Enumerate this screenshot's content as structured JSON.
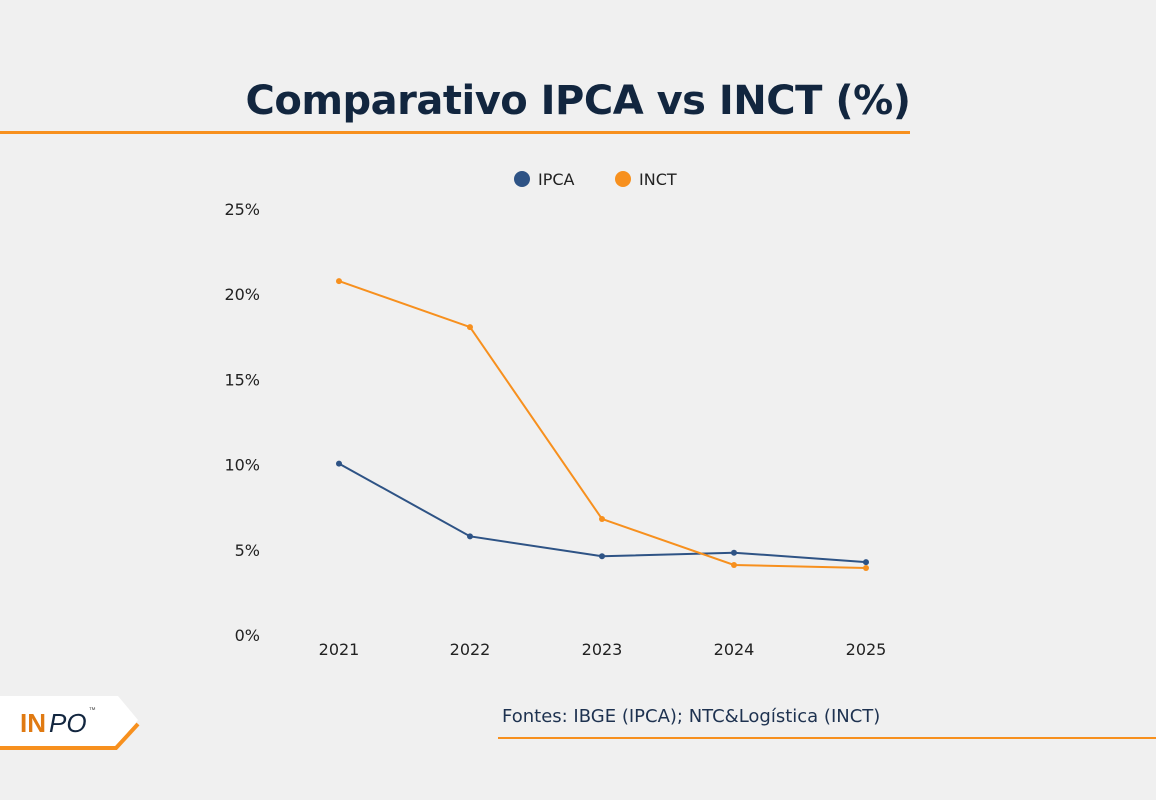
{
  "title": "Comparativo IPCA vs INCT (%)",
  "source": "Fontes: IBGE (IPCA); NTC&Logística (INCT)",
  "logo": {
    "text": "INPO",
    "tm": "™"
  },
  "chart_data": {
    "type": "line",
    "title": "Comparativo IPCA vs INCT (%)",
    "categories": [
      "2021",
      "2022",
      "2023",
      "2024",
      "2025"
    ],
    "yticks": [
      "0%",
      "5%",
      "10%",
      "15%",
      "20%",
      "25%"
    ],
    "ylim": [
      0,
      25
    ],
    "grid": false,
    "legend": "top",
    "series": [
      {
        "name": "IPCA",
        "color": "#2e5385",
        "values": [
          10.06,
          5.79,
          4.62,
          4.83,
          4.28
        ]
      },
      {
        "name": "INCT",
        "color": "#f7901e",
        "values": [
          20.77,
          18.07,
          6.81,
          4.11,
          3.93
        ]
      }
    ]
  }
}
